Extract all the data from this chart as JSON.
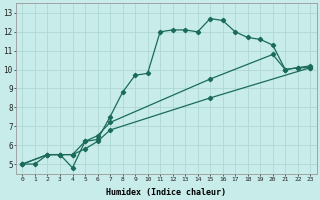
{
  "xlabel": "Humidex (Indice chaleur)",
  "xlim": [
    -0.5,
    23.5
  ],
  "ylim": [
    4.5,
    13.5
  ],
  "xticks": [
    0,
    1,
    2,
    3,
    4,
    5,
    6,
    7,
    8,
    9,
    10,
    11,
    12,
    13,
    14,
    15,
    16,
    17,
    18,
    19,
    20,
    21,
    22,
    23
  ],
  "yticks": [
    5,
    6,
    7,
    8,
    9,
    10,
    11,
    12,
    13
  ],
  "bg_color": "#c8ecea",
  "grid_color": "#aed8d4",
  "line_color": "#1a6b5a",
  "line1_x": [
    0,
    1,
    2,
    3,
    4,
    5,
    6,
    7,
    8,
    9,
    10,
    11,
    12,
    13,
    14,
    15,
    16,
    17,
    18,
    19,
    20,
    21,
    22,
    23
  ],
  "line1_y": [
    5.0,
    5.0,
    5.5,
    5.5,
    4.8,
    6.2,
    6.3,
    7.5,
    8.8,
    9.7,
    9.8,
    12.0,
    12.1,
    12.1,
    12.0,
    12.7,
    12.6,
    12.0,
    11.7,
    11.6,
    11.3,
    10.0,
    10.1,
    10.1
  ],
  "line2_x": [
    0,
    2,
    3,
    4,
    5,
    6,
    7,
    15,
    20,
    21,
    22,
    23
  ],
  "line2_y": [
    5.0,
    5.5,
    5.5,
    5.5,
    6.2,
    6.5,
    7.2,
    9.5,
    10.8,
    10.0,
    10.1,
    10.2
  ],
  "line3_x": [
    0,
    2,
    3,
    4,
    5,
    6,
    7,
    15,
    23
  ],
  "line3_y": [
    5.0,
    5.5,
    5.5,
    5.5,
    5.8,
    6.2,
    6.8,
    8.5,
    10.1
  ],
  "marker": "D",
  "markersize": 2.2,
  "linewidth": 0.9
}
